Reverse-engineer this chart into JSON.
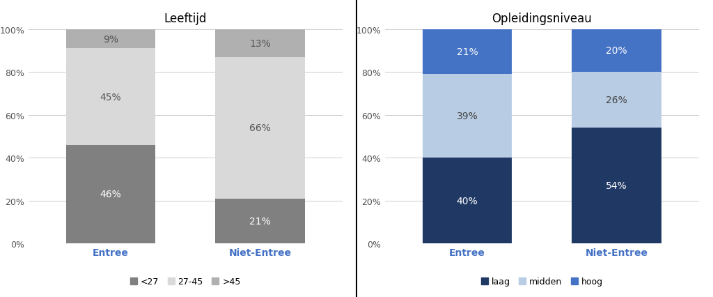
{
  "chart1": {
    "title": "Leeftijd",
    "categories": [
      "Entree",
      "Niet-Entree"
    ],
    "series": [
      {
        "label": "<27",
        "values": [
          46,
          21
        ],
        "color": "#808080"
      },
      {
        "label": "27-45",
        "values": [
          45,
          66
        ],
        "color": "#d9d9d9"
      },
      {
        "label": ">45",
        "values": [
          9,
          13
        ],
        "color": "#b0b0b0"
      }
    ],
    "text_colors": [
      "white",
      "#555555",
      "#555555"
    ]
  },
  "chart2": {
    "title": "Opleidingsniveau",
    "categories": [
      "Entree",
      "Niet-Entree"
    ],
    "series": [
      {
        "label": "laag",
        "values": [
          40,
          54
        ],
        "color": "#1f3864"
      },
      {
        "label": "midden",
        "values": [
          39,
          26
        ],
        "color": "#b8cce4"
      },
      {
        "label": "hoog",
        "values": [
          21,
          20
        ],
        "color": "#4472c4"
      }
    ],
    "text_colors": [
      "white",
      "#444444",
      "white"
    ]
  },
  "xlabel_color": "#4472c4",
  "background_color": "#ffffff",
  "label_fontsize": 10,
  "title_fontsize": 12,
  "tick_fontsize": 9,
  "legend_fontsize": 9,
  "bar_width": 0.6
}
